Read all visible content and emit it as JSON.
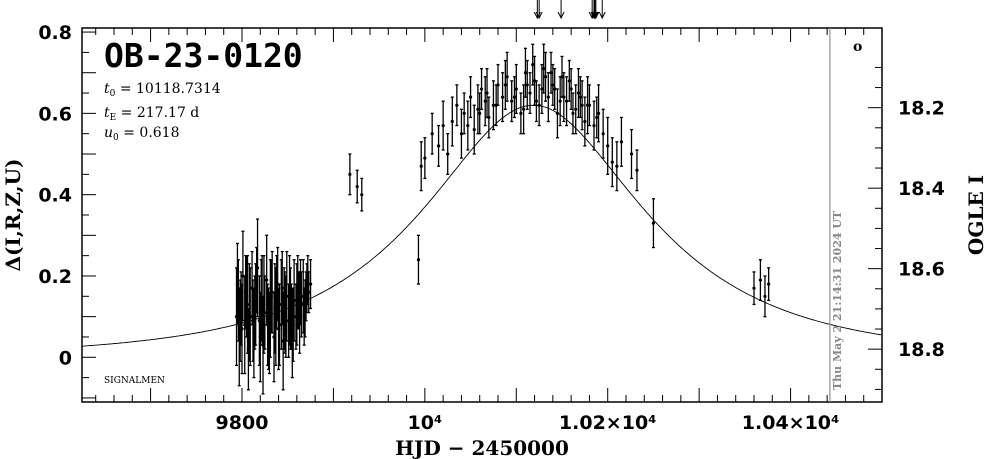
{
  "chart_data": {
    "type": "scatter",
    "title": "OB-23-0120",
    "params": {
      "t0": "10118.7314",
      "tE": "217.17 d",
      "u0": "0.618"
    },
    "xlabel": "HJD − 2450000",
    "ylabel": "Δ(I,R,Z,U)",
    "ylabel_right": "OGLE I",
    "xlim": [
      9625,
      10500
    ],
    "ylim": [
      -0.11,
      0.81
    ],
    "x_ticks": [
      {
        "value": 9800,
        "label": "9800"
      },
      {
        "value": 10000,
        "label": "10⁴"
      },
      {
        "value": 10200,
        "label": "1.02×10⁴"
      },
      {
        "value": 10400,
        "label": "1.04×10⁴"
      }
    ],
    "y_ticks": [
      {
        "value": 0,
        "label": "0"
      },
      {
        "value": 0.2,
        "label": "0.2"
      },
      {
        "value": 0.4,
        "label": "0.4"
      },
      {
        "value": 0.6,
        "label": "0.6"
      },
      {
        "value": 0.8,
        "label": "0.8"
      }
    ],
    "right_ticks": [
      {
        "value": 0.614,
        "label": "18.2"
      },
      {
        "value": 0.416,
        "label": "18.4"
      },
      {
        "value": 0.218,
        "label": "18.6"
      },
      {
        "value": 0.02,
        "label": "18.8"
      }
    ],
    "model": {
      "t0": 10118.7314,
      "tE": 217.17,
      "u0": 0.618
    },
    "now_marker": {
      "x": 10443,
      "label": "Thu May  2 21:14:31 2024 UT"
    },
    "arrows_x": [
      10123,
      10125,
      10149,
      10183,
      10185,
      10186,
      10187,
      10194
    ],
    "series": [
      {
        "x": [
          9794,
          9795,
          9797,
          9799,
          9801,
          9803,
          9805,
          9807,
          9809,
          9811,
          9813,
          9815,
          9817,
          9819,
          9821,
          9823,
          9825,
          9827,
          9829,
          9831,
          9833,
          9835,
          9837,
          9839,
          9841,
          9843,
          9845,
          9847,
          9849,
          9851,
          9853,
          9855,
          9857,
          9859,
          9861,
          9863,
          9865,
          9867,
          9869,
          9871,
          9873,
          9875,
          9796,
          9800,
          9804,
          9808,
          9812,
          9816,
          9820,
          9824,
          9828,
          9832,
          9836,
          9840,
          9844,
          9848,
          9852,
          9856,
          9860,
          9864,
          9868,
          9872,
          9798,
          9806,
          9814,
          9822,
          9830,
          9838,
          9846,
          9854,
          9862,
          9870,
          9918,
          9926,
          9931,
          9993,
          9996,
          10000,
          10008,
          10015,
          10020,
          10025,
          10030,
          10035,
          10040,
          10043,
          10047,
          10050,
          10054,
          10058,
          10062,
          10066,
          10070,
          10075,
          10080,
          10085,
          10090,
          10095,
          10100,
          10105,
          10110,
          10115,
          10120,
          10125,
          10130,
          10135,
          10140,
          10145,
          10150,
          10155,
          10160,
          10165,
          10170,
          10175,
          10180,
          10185,
          10190,
          10195,
          10060,
          10068,
          10078,
          10088,
          10098,
          10108,
          10118,
          10128,
          10138,
          10148,
          10158,
          10168,
          10178,
          10188,
          10112,
          10122,
          10132,
          10142,
          10152,
          10162,
          10172,
          10200,
          10205,
          10210,
          10215,
          10226,
          10232,
          10250,
          10360,
          10367,
          10372,
          10376
        ],
        "y": [
          0.1,
          0.18,
          0.05,
          0.12,
          0.2,
          0.08,
          0.15,
          0.02,
          0.1,
          0.17,
          0.06,
          0.13,
          0.22,
          0.09,
          0.14,
          0.03,
          0.11,
          0.19,
          0.07,
          0.12,
          0.16,
          0.05,
          0.1,
          0.18,
          0.08,
          0.13,
          0.04,
          0.11,
          0.15,
          0.09,
          0.12,
          0.06,
          0.14,
          0.1,
          0.16,
          0.11,
          0.13,
          0.15,
          0.12,
          0.17,
          0.16,
          0.18,
          0.14,
          0.07,
          0.16,
          0.11,
          0.09,
          0.19,
          0.05,
          0.13,
          0.08,
          0.15,
          0.12,
          0.07,
          0.17,
          0.1,
          0.14,
          0.08,
          0.13,
          0.16,
          0.1,
          0.19,
          0.09,
          0.13,
          0.11,
          0.14,
          0.06,
          0.16,
          0.12,
          0.1,
          0.14,
          0.15,
          0.45,
          0.42,
          0.4,
          0.24,
          0.47,
          0.49,
          0.55,
          0.52,
          0.57,
          0.5,
          0.58,
          0.62,
          0.55,
          0.6,
          0.57,
          0.64,
          0.56,
          0.61,
          0.66,
          0.63,
          0.59,
          0.62,
          0.67,
          0.64,
          0.69,
          0.63,
          0.66,
          0.6,
          0.7,
          0.65,
          0.68,
          0.62,
          0.71,
          0.64,
          0.67,
          0.6,
          0.69,
          0.63,
          0.66,
          0.61,
          0.64,
          0.58,
          0.62,
          0.57,
          0.6,
          0.55,
          0.6,
          0.65,
          0.62,
          0.67,
          0.64,
          0.61,
          0.72,
          0.66,
          0.7,
          0.63,
          0.68,
          0.65,
          0.62,
          0.59,
          0.67,
          0.63,
          0.69,
          0.66,
          0.64,
          0.6,
          0.62,
          0.52,
          0.48,
          0.47,
          0.53,
          0.5,
          0.46,
          0.33,
          0.17,
          0.19,
          0.15,
          0.18
        ],
        "err": [
          0.12,
          0.1,
          0.12,
          0.09,
          0.11,
          0.12,
          0.1,
          0.1,
          0.12,
          0.09,
          0.11,
          0.1,
          0.12,
          0.11,
          0.1,
          0.12,
          0.09,
          0.11,
          0.1,
          0.12,
          0.1,
          0.11,
          0.12,
          0.09,
          0.1,
          0.11,
          0.12,
          0.1,
          0.11,
          0.09,
          0.1,
          0.11,
          0.1,
          0.08,
          0.09,
          0.1,
          0.08,
          0.09,
          0.07,
          0.06,
          0.05,
          0.06,
          0.1,
          0.11,
          0.09,
          0.12,
          0.1,
          0.08,
          0.11,
          0.12,
          0.1,
          0.09,
          0.11,
          0.1,
          0.09,
          0.1,
          0.11,
          0.09,
          0.1,
          0.08,
          0.07,
          0.06,
          0.1,
          0.12,
          0.09,
          0.11,
          0.1,
          0.09,
          0.1,
          0.08,
          0.07,
          0.06,
          0.05,
          0.04,
          0.04,
          0.06,
          0.06,
          0.05,
          0.05,
          0.05,
          0.06,
          0.05,
          0.06,
          0.05,
          0.06,
          0.05,
          0.06,
          0.05,
          0.06,
          0.06,
          0.05,
          0.06,
          0.05,
          0.06,
          0.05,
          0.06,
          0.06,
          0.05,
          0.06,
          0.05,
          0.06,
          0.05,
          0.06,
          0.05,
          0.06,
          0.06,
          0.05,
          0.06,
          0.05,
          0.06,
          0.05,
          0.06,
          0.05,
          0.06,
          0.05,
          0.06,
          0.07,
          0.06,
          0.05,
          0.06,
          0.05,
          0.06,
          0.05,
          0.06,
          0.05,
          0.06,
          0.05,
          0.06,
          0.05,
          0.06,
          0.07,
          0.05,
          0.06,
          0.05,
          0.06,
          0.05,
          0.06,
          0.05,
          0.06,
          0.07,
          0.06,
          0.06,
          0.06,
          0.06,
          0.05,
          0.06,
          0.04,
          0.05,
          0.05,
          0.04
        ]
      }
    ],
    "legend_text": "SIGNALMEN",
    "corner_marker": "o"
  }
}
